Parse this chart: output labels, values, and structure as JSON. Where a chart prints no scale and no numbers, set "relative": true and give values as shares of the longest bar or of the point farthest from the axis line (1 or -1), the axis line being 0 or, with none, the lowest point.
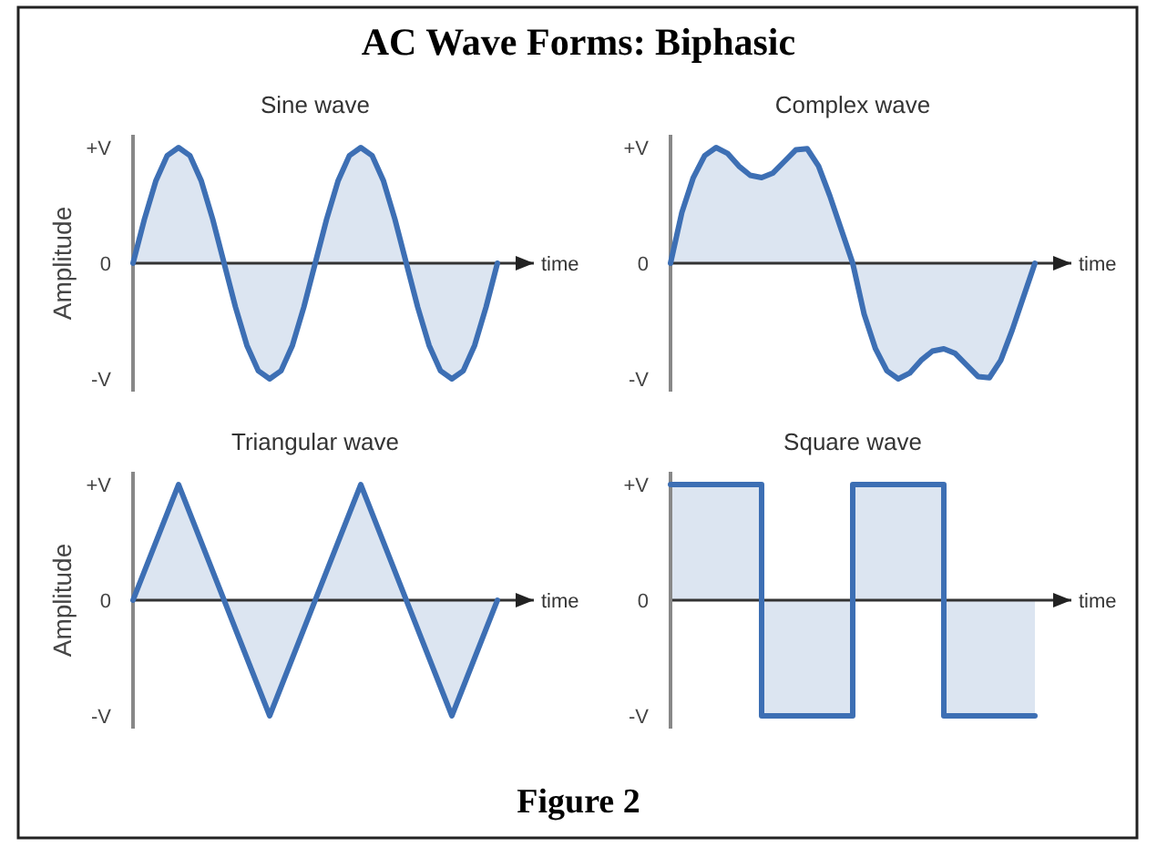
{
  "chart_data": [
    {
      "type": "other",
      "title": "AC Wave Forms: Biphasic",
      "annotations": [
        "Figure 2"
      ]
    },
    {
      "type": "line",
      "relative": true,
      "title": "Sine wave",
      "xlabel": "time",
      "ylabel": "Amplitude",
      "color": "#3d6fb4",
      "annotations": [
        "+V",
        "0",
        "-V"
      ],
      "categories": [
        null,
        null,
        null,
        null,
        null,
        null,
        null,
        null,
        null,
        null,
        null,
        null,
        null,
        null,
        null,
        null,
        null,
        null,
        null,
        null,
        null,
        null,
        null,
        null,
        null,
        null,
        null,
        null,
        null,
        null,
        null,
        null,
        null
      ],
      "values": [
        0,
        0.38,
        0.71,
        0.93,
        1,
        0.93,
        0.71,
        0.38,
        0,
        -0.38,
        -0.71,
        -0.93,
        -1,
        -0.93,
        -0.71,
        -0.38,
        0,
        0.38,
        0.71,
        0.93,
        1,
        0.93,
        0.71,
        0.38,
        0,
        -0.38,
        -0.71,
        -0.93,
        -1,
        -0.93,
        -0.71,
        -0.38,
        0
      ]
    },
    {
      "type": "line",
      "relative": true,
      "title": "Complex wave",
      "xlabel": "time",
      "color": "#3d6fb4",
      "annotations": [
        "+V",
        "0",
        "-V"
      ],
      "categories": [
        null,
        null,
        null,
        null,
        null,
        null,
        null,
        null,
        null,
        null,
        null,
        null,
        null,
        null,
        null,
        null,
        null,
        null,
        null,
        null,
        null,
        null,
        null,
        null,
        null,
        null,
        null,
        null,
        null,
        null,
        null,
        null,
        null
      ],
      "values": [
        0,
        0.44,
        0.74,
        0.93,
        1,
        0.95,
        0.84,
        0.76,
        0.74,
        0.78,
        0.88,
        0.98,
        0.99,
        0.84,
        0.58,
        0.29,
        0,
        -0.44,
        -0.74,
        -0.93,
        -1,
        -0.95,
        -0.84,
        -0.76,
        -0.74,
        -0.78,
        -0.88,
        -0.98,
        -0.99,
        -0.84,
        -0.58,
        -0.29,
        0
      ]
    },
    {
      "type": "line",
      "relative": true,
      "title": "Triangular wave",
      "xlabel": "time",
      "ylabel": "Amplitude",
      "color": "#3d6fb4",
      "annotations": [
        "+V",
        "0",
        "-V"
      ],
      "categories": [
        null,
        null,
        null,
        null,
        null,
        null,
        null,
        null,
        null
      ],
      "values": [
        0,
        1,
        0,
        -1,
        0,
        1,
        0,
        -1,
        0
      ]
    },
    {
      "type": "step",
      "relative": true,
      "title": "Square wave",
      "xlabel": "time",
      "color": "#3d6fb4",
      "annotations": [
        "+V",
        "0",
        "-V"
      ],
      "categories": [
        null,
        null,
        null,
        null,
        null
      ],
      "values": [
        1,
        -1,
        1,
        -1,
        -1
      ]
    }
  ]
}
